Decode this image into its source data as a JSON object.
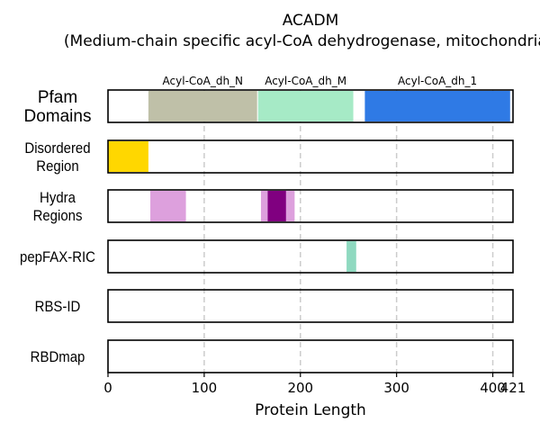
{
  "chart_data": {
    "type": "protein-domain-tracks",
    "title_line1": "ACADM",
    "title_line2": "(Medium-chain specific acyl-CoA dehydrogenase, mitochondrial)",
    "xlabel": "Protein Length",
    "xlim": [
      0,
      421
    ],
    "xticks": [
      0,
      100,
      200,
      300,
      400,
      421
    ],
    "grid_x": [
      100,
      200,
      300,
      400
    ],
    "tracks": [
      {
        "label": "Pfam\nDomains",
        "segments": [
          {
            "name": "Acyl-CoA_dh_N",
            "start": 42,
            "end": 155,
            "color": "#bfc0a8"
          },
          {
            "name": "Acyl-CoA_dh_M",
            "start": 156,
            "end": 255,
            "color": "#a6eac6"
          },
          {
            "name": "Acyl-CoA_dh_1",
            "start": 267,
            "end": 418,
            "color": "#2f7ae5"
          }
        ]
      },
      {
        "label": "Disordered\nRegion",
        "segments": [
          {
            "start": 0,
            "end": 42,
            "color": "#ffd700"
          }
        ]
      },
      {
        "label": "Hydra\nRegions",
        "segments": [
          {
            "start": 44,
            "end": 81,
            "color": "#dda0dd"
          },
          {
            "start": 159,
            "end": 194,
            "color": "#dda0dd"
          },
          {
            "start": 166,
            "end": 185,
            "color": "#800080"
          }
        ]
      },
      {
        "label": "pepFAX-RIC",
        "segments": [
          {
            "start": 248,
            "end": 258,
            "color": "#8fd9c0"
          }
        ]
      },
      {
        "label": "RBS-ID",
        "segments": []
      },
      {
        "label": "RBDmap",
        "segments": []
      }
    ]
  }
}
